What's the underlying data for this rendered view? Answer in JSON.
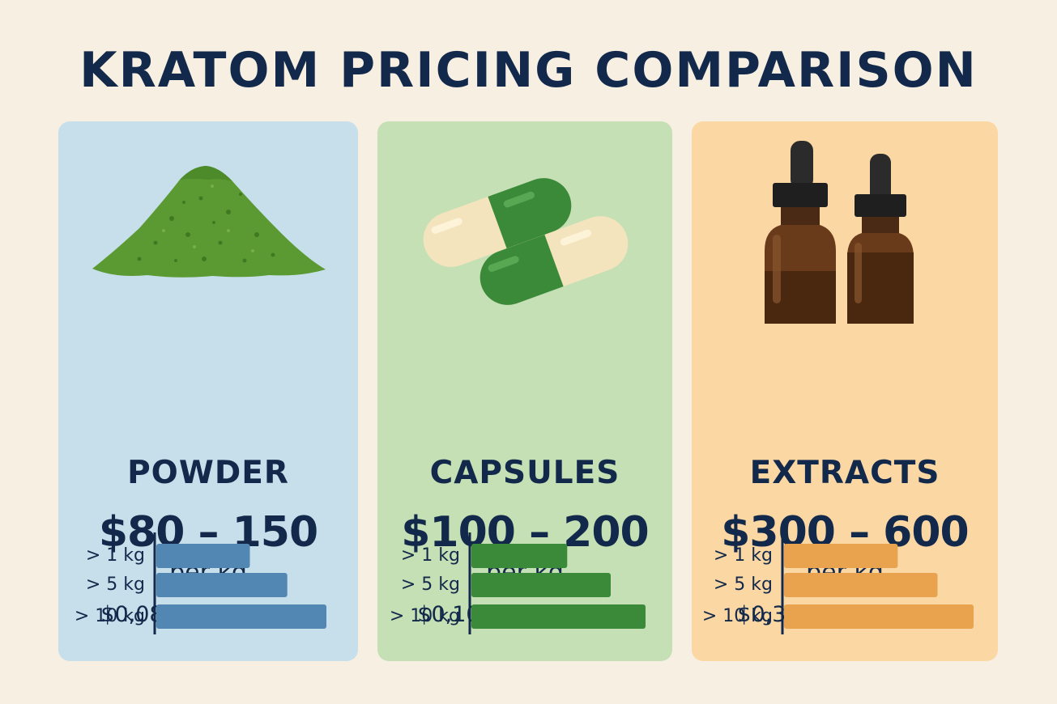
{
  "title": "KRATOM PRICING COMPARISON",
  "cards": [
    {
      "name": "POWDER",
      "range": "$80 – 150",
      "unit": "per kg",
      "per_gram": "$0,08 – 0,15 / gram",
      "background": "#c7dfeb",
      "bar_color": "#5287b4",
      "icon": "powder-pile-icon"
    },
    {
      "name": "CAPSULES",
      "range": "$100 – 200",
      "unit": "per kg",
      "per_gram": "$0,10 – 0,20 / gram",
      "background": "#c5e0b4",
      "bar_color": "#3a8a3a",
      "icon": "capsules-icon"
    },
    {
      "name": "EXTRACTS",
      "range": "$300 – 600",
      "unit": "per kg",
      "per_gram": "$0,30 – 0,60 / gram",
      "background": "#fbd7a4",
      "bar_color": "#e9a34f",
      "icon": "dropper-bottles-icon"
    }
  ],
  "chart_data": [
    {
      "type": "bar",
      "orientation": "horizontal",
      "categories": [
        "> 1 kg",
        "> 5 kg",
        "> 10 kg"
      ],
      "values": [
        0.55,
        0.77,
        1.0
      ],
      "title": "",
      "xlabel": "",
      "ylabel": "",
      "grid": false,
      "axis_ticks_shown": false
    },
    {
      "type": "bar",
      "orientation": "horizontal",
      "categories": [
        "> 1 kg",
        "> 5 kg",
        "> 10 kg"
      ],
      "values": [
        0.55,
        0.8,
        1.0
      ],
      "title": "",
      "xlabel": "",
      "ylabel": "",
      "grid": false,
      "axis_ticks_shown": false
    },
    {
      "type": "bar",
      "orientation": "horizontal",
      "categories": [
        "> 1 kg",
        "> 5 kg",
        "> 10 kg"
      ],
      "values": [
        0.6,
        0.81,
        1.0
      ],
      "title": "",
      "xlabel": "",
      "ylabel": "",
      "grid": false,
      "axis_ticks_shown": false
    }
  ]
}
